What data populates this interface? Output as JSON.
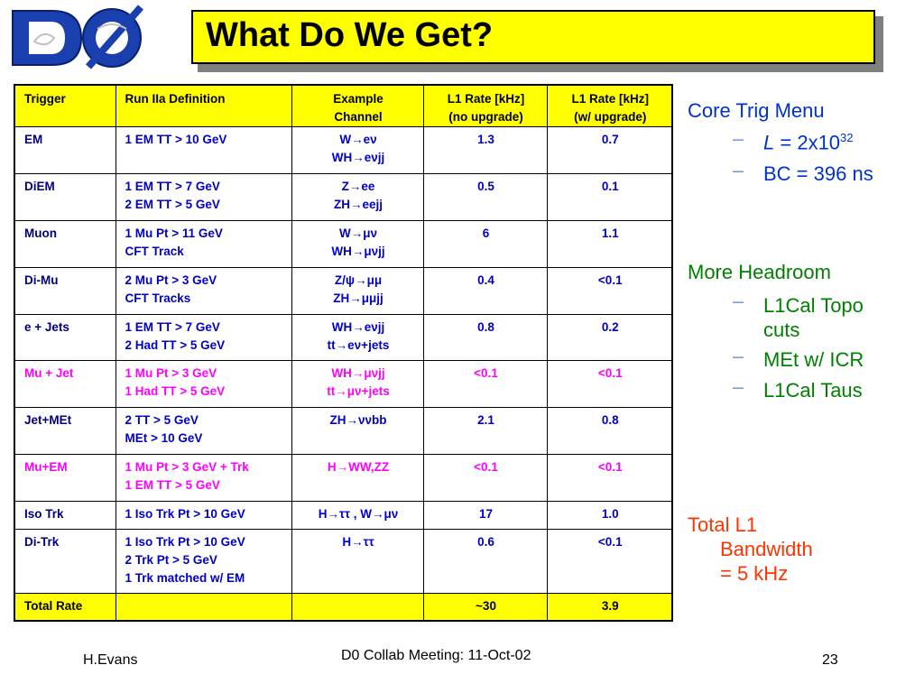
{
  "title": "What Do We Get?",
  "logo": {
    "text": "DØ"
  },
  "table": {
    "headers": [
      "Trigger",
      "Run IIa Definition",
      "Example\nChannel",
      "L1 Rate [kHz]\n(no upgrade)",
      "L1 Rate [kHz]\n(w/ upgrade)"
    ],
    "rows": [
      {
        "trigger": "EM",
        "def": [
          "1 EM TT > 10 GeV"
        ],
        "channel": [
          "W→eν",
          "WH→eνjj"
        ],
        "r1": "1.3",
        "r2": "0.7"
      },
      {
        "trigger": "DiEM",
        "def": [
          "1 EM TT > 7 GeV",
          "2 EM TT > 5 GeV"
        ],
        "channel": [
          "Z→ee",
          "ZH→eejj"
        ],
        "r1": "0.5",
        "r2": "0.1"
      },
      {
        "trigger": "Muon",
        "def": [
          "1 Mu Pt > 11 GeV",
          "CFT Track"
        ],
        "channel": [
          "W→μν",
          "WH→μνjj"
        ],
        "r1": "6",
        "r2": "1.1"
      },
      {
        "trigger": "Di-Mu",
        "def": [
          "2 Mu Pt > 3 GeV",
          "CFT Tracks"
        ],
        "channel": [
          "Z/ψ→μμ",
          "ZH→μμjj"
        ],
        "r1": "0.4",
        "r2": "<0.1"
      },
      {
        "trigger": "e + Jets",
        "def": [
          "1 EM TT > 7 GeV",
          "2 Had TT > 5 GeV"
        ],
        "channel": [
          "WH→eνjj",
          "tt→eν+jets"
        ],
        "r1": "0.8",
        "r2": "0.2"
      },
      {
        "trigger": "Mu + Jet",
        "def": [
          "1 Mu Pt > 3 GeV",
          "1 Had TT > 5 GeV"
        ],
        "channel": [
          "WH→μνjj",
          "tt→μν+jets"
        ],
        "r1": "<0.1",
        "r2": "<0.1"
      },
      {
        "trigger": "Jet+MEt",
        "def": [
          "2 TT > 5 GeV",
          "MEt > 10 GeV"
        ],
        "channel": [
          "ZH→ννbb"
        ],
        "r1": "2.1",
        "r2": "0.8"
      },
      {
        "trigger": "Mu+EM",
        "def": [
          "1 Mu Pt > 3 GeV + Trk",
          "1 EM TT > 5 GeV"
        ],
        "channel": [
          "H→WW,ZZ"
        ],
        "r1": "<0.1",
        "r2": "<0.1"
      },
      {
        "trigger": "Iso Trk",
        "def": [
          "1 Iso Trk Pt > 10 GeV"
        ],
        "channel": [
          "H→ττ , W→μν"
        ],
        "r1": "17",
        "r2": "1.0"
      },
      {
        "trigger": "Di-Trk",
        "def": [
          "1 Iso Trk Pt > 10 GeV",
          "2 Trk Pt > 5 GeV",
          "1 Trk matched w/ EM"
        ],
        "channel": [
          "H→ττ"
        ],
        "r1": "0.6",
        "r2": "<0.1"
      }
    ],
    "total": {
      "label": "Total Rate",
      "r1": "~30",
      "r2": "3.9"
    }
  },
  "side": {
    "core": {
      "heading": "Core Trig Menu",
      "lum_var": "L",
      "lum_val": "= 2x10",
      "lum_exp": "32",
      "bc": "BC = 396 ns"
    },
    "headroom": {
      "heading": "More Headroom",
      "items": [
        "L1Cal Topo",
        "cuts",
        "MEt w/ ICR",
        "L1Cal Taus"
      ]
    },
    "total": [
      "Total L1",
      "Bandwidth",
      "= 5 kHz"
    ]
  },
  "footer": {
    "author": "H.Evans",
    "meeting": "D0 Collab Meeting: 11-Oct-02",
    "page": "23"
  },
  "colors": {
    "title_bg": "#ffff00",
    "blue": "#0000cc",
    "magenta": "#ff00ff",
    "green": "#008000",
    "red": "#ff3300"
  }
}
